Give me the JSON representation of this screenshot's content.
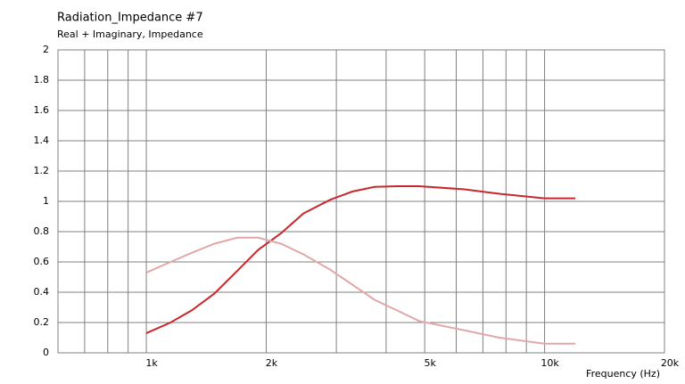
{
  "chart_data": {
    "type": "line",
    "title": "Radiation_Impedance #7",
    "subtitle": "Real + Imaginary, Impedance",
    "x_label": "Frequency  (Hz)",
    "xscale": "log",
    "grid": true,
    "xlim": [
      600,
      20000
    ],
    "xticks": [
      {
        "value": 1000,
        "label": "1k"
      },
      {
        "value": 2000,
        "label": "2k"
      },
      {
        "value": 5000,
        "label": "5k"
      },
      {
        "value": 10000,
        "label": "10k"
      },
      {
        "value": 20000,
        "label": "20k"
      }
    ],
    "xminor": [
      700,
      800,
      900,
      3000,
      4000,
      6000,
      7000,
      8000,
      9000
    ],
    "ylim": [
      0,
      2
    ],
    "yticks": [
      0,
      0.2,
      0.4,
      0.6,
      0.8,
      1,
      1.2,
      1.4,
      1.6,
      1.8,
      2
    ],
    "x": [
      1000,
      1150,
      1300,
      1480,
      1690,
      1910,
      2180,
      2480,
      2890,
      3290,
      3740,
      4260,
      4840,
      6250,
      7700,
      10000,
      11950
    ],
    "series": [
      {
        "color": "#c8282d",
        "values": [
          0.13,
          0.2,
          0.28,
          0.39,
          0.54,
          0.68,
          0.79,
          0.92,
          1.01,
          1.065,
          1.095,
          1.1,
          1.1,
          1.08,
          1.05,
          1.02,
          1.02
        ]
      },
      {
        "color": "#e0a8a8",
        "values": [
          0.53,
          0.6,
          0.66,
          0.72,
          0.76,
          0.76,
          0.72,
          0.65,
          0.55,
          0.45,
          0.35,
          0.28,
          0.21,
          0.15,
          0.1,
          0.06,
          0.06
        ]
      }
    ]
  }
}
